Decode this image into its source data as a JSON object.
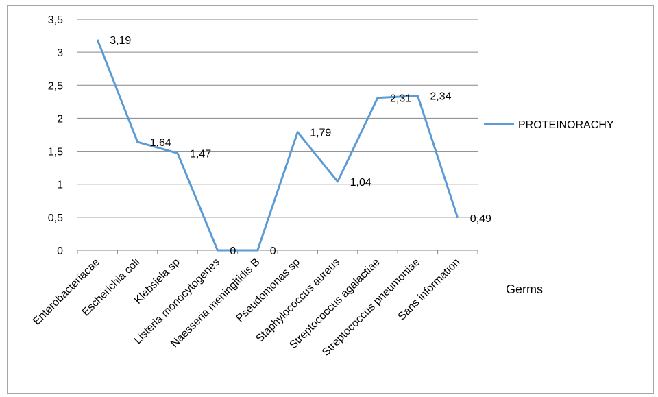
{
  "chart_data": {
    "type": "line",
    "categories": [
      "Enterobacteriacae",
      "Escherichia coli",
      "Klebsiela sp",
      "Listeria monocytogenes",
      "Naesseria meningitidis B",
      "Pseudomonas sp",
      "Staphylococcus aureus",
      "Streptococcus agalactiae",
      "Streptococcus pneumoniae",
      "Sans information"
    ],
    "series": [
      {
        "name": "PROTEINORACHY",
        "values": [
          3.19,
          1.64,
          1.47,
          0,
          0,
          1.79,
          1.04,
          2.31,
          2.34,
          0.49
        ],
        "labels": [
          "3,19",
          "1,64",
          "1,47",
          "0",
          "0",
          "1,79",
          "1,04",
          "2,31",
          "2,34",
          "0,49"
        ],
        "color": "#5b9bd5"
      }
    ],
    "xlabel": "Germs",
    "ylabel": "",
    "ylim": [
      0,
      3.5
    ],
    "yticks": [
      "0",
      "0,5",
      "1",
      "1,5",
      "2",
      "2,5",
      "3",
      "3,5"
    ],
    "grid": true,
    "legend_position": "right",
    "gridline_color": "#868686"
  }
}
